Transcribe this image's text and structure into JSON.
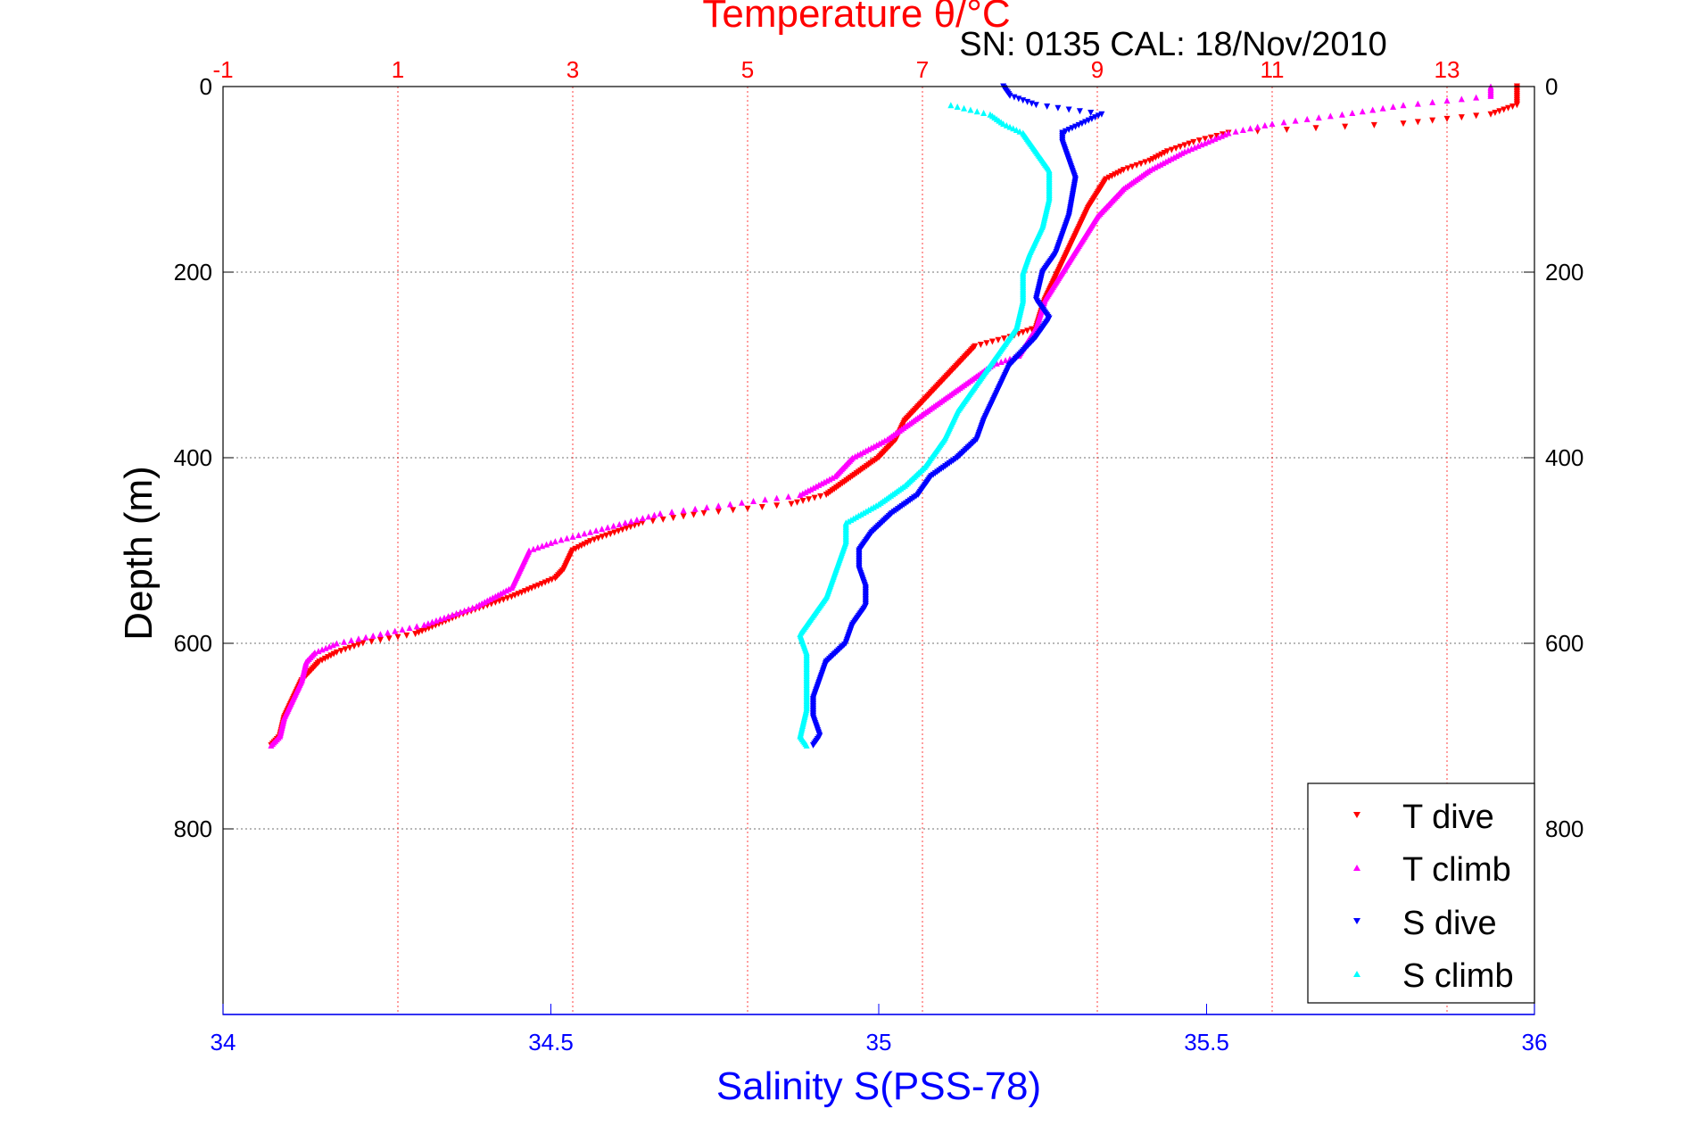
{
  "chart_data": {
    "type": "scatter",
    "title": "Temperature θ/°C",
    "subtitle": "SN: 0135  CAL: 18/Nov/2010",
    "ylabel": "Depth (m)",
    "xlabel_bottom": "Salinity S(PSS-78)",
    "ylim": [
      0,
      1000
    ],
    "y_reversed": true,
    "y_ticks": [
      0,
      200,
      400,
      600,
      800
    ],
    "x_top": {
      "label": "Temperature θ/°C",
      "lim": [
        -1,
        14
      ],
      "ticks": [
        -1,
        1,
        3,
        5,
        7,
        9,
        11,
        13
      ]
    },
    "x_bottom": {
      "label": "Salinity S(PSS-78)",
      "lim": [
        34,
        36
      ],
      "ticks": [
        34,
        34.5,
        35,
        35.5,
        36
      ]
    },
    "grid": true,
    "legend": {
      "placement": "bottom-right",
      "entries": [
        "T dive",
        "T climb",
        "S dive",
        "S climb"
      ]
    },
    "colors": {
      "T dive": "#ff0000",
      "T climb": "#ff00ff",
      "S dive": "#0000ff",
      "S climb": "#00ffff",
      "top_axis": "#ff0000",
      "bottom_axis": "#0000ff"
    },
    "series": [
      {
        "name": "T dive",
        "axis": "top",
        "marker": "triangle-down",
        "points": [
          [
            13.8,
            0
          ],
          [
            13.8,
            10
          ],
          [
            13.8,
            20
          ],
          [
            13.5,
            30
          ],
          [
            12.5,
            40
          ],
          [
            10.5,
            50
          ],
          [
            10.1,
            60
          ],
          [
            9.8,
            70
          ],
          [
            9.6,
            80
          ],
          [
            9.3,
            90
          ],
          [
            9.1,
            100
          ],
          [
            8.9,
            130
          ],
          [
            8.8,
            150
          ],
          [
            8.7,
            170
          ],
          [
            8.6,
            190
          ],
          [
            8.5,
            210
          ],
          [
            8.4,
            230
          ],
          [
            8.35,
            245
          ],
          [
            8.3,
            260
          ],
          [
            8.0,
            270
          ],
          [
            7.6,
            280
          ],
          [
            7.4,
            300
          ],
          [
            7.2,
            320
          ],
          [
            7.0,
            340
          ],
          [
            6.8,
            360
          ],
          [
            6.7,
            380
          ],
          [
            6.5,
            400
          ],
          [
            6.2,
            420
          ],
          [
            5.9,
            440
          ],
          [
            5.5,
            450
          ],
          [
            4.5,
            460
          ],
          [
            3.8,
            470
          ],
          [
            3.2,
            490
          ],
          [
            3.0,
            500
          ],
          [
            2.9,
            520
          ],
          [
            2.8,
            530
          ],
          [
            2.3,
            550
          ],
          [
            1.7,
            570
          ],
          [
            1.2,
            590
          ],
          [
            0.6,
            600
          ],
          [
            0.3,
            610
          ],
          [
            0.1,
            620
          ],
          [
            0.0,
            630
          ],
          [
            -0.1,
            640
          ],
          [
            -0.2,
            660
          ],
          [
            -0.3,
            680
          ],
          [
            -0.35,
            700
          ],
          [
            -0.45,
            710
          ]
        ]
      },
      {
        "name": "T climb",
        "axis": "top",
        "marker": "triangle-up",
        "points": [
          [
            13.5,
            0
          ],
          [
            13.5,
            10
          ],
          [
            12.5,
            20
          ],
          [
            11.8,
            30
          ],
          [
            11.0,
            40
          ],
          [
            10.5,
            50
          ],
          [
            10.0,
            70
          ],
          [
            9.6,
            90
          ],
          [
            9.3,
            110
          ],
          [
            9.0,
            140
          ],
          [
            8.8,
            170
          ],
          [
            8.6,
            200
          ],
          [
            8.4,
            230
          ],
          [
            8.3,
            260
          ],
          [
            8.1,
            290
          ],
          [
            7.8,
            300
          ],
          [
            7.5,
            320
          ],
          [
            7.2,
            340
          ],
          [
            6.9,
            360
          ],
          [
            6.6,
            380
          ],
          [
            6.2,
            400
          ],
          [
            6.0,
            420
          ],
          [
            5.6,
            440
          ],
          [
            4.8,
            450
          ],
          [
            4.0,
            460
          ],
          [
            3.6,
            470
          ],
          [
            3.2,
            480
          ],
          [
            2.8,
            490
          ],
          [
            2.5,
            500
          ],
          [
            2.4,
            520
          ],
          [
            2.3,
            540
          ],
          [
            1.9,
            560
          ],
          [
            1.3,
            580
          ],
          [
            0.8,
            590
          ],
          [
            0.3,
            600
          ],
          [
            0.05,
            610
          ],
          [
            -0.05,
            620
          ],
          [
            -0.1,
            640
          ],
          [
            -0.2,
            660
          ],
          [
            -0.3,
            680
          ],
          [
            -0.35,
            700
          ],
          [
            -0.45,
            710
          ]
        ]
      },
      {
        "name": "S dive",
        "axis": "bottom",
        "marker": "triangle-down",
        "points": [
          [
            35.19,
            0
          ],
          [
            35.2,
            10
          ],
          [
            35.24,
            20
          ],
          [
            35.34,
            30
          ],
          [
            35.31,
            40
          ],
          [
            35.28,
            50
          ],
          [
            35.28,
            60
          ],
          [
            35.29,
            80
          ],
          [
            35.3,
            100
          ],
          [
            35.29,
            140
          ],
          [
            35.27,
            180
          ],
          [
            35.25,
            200
          ],
          [
            35.24,
            230
          ],
          [
            35.26,
            250
          ],
          [
            35.24,
            270
          ],
          [
            35.2,
            300
          ],
          [
            35.18,
            330
          ],
          [
            35.16,
            360
          ],
          [
            35.15,
            380
          ],
          [
            35.12,
            400
          ],
          [
            35.08,
            420
          ],
          [
            35.06,
            440
          ],
          [
            35.02,
            460
          ],
          [
            34.99,
            480
          ],
          [
            34.97,
            500
          ],
          [
            34.97,
            520
          ],
          [
            34.98,
            540
          ],
          [
            34.98,
            560
          ],
          [
            34.96,
            580
          ],
          [
            34.95,
            600
          ],
          [
            34.92,
            620
          ],
          [
            34.91,
            640
          ],
          [
            34.9,
            660
          ],
          [
            34.9,
            680
          ],
          [
            34.91,
            700
          ],
          [
            34.9,
            710
          ]
        ]
      },
      {
        "name": "S climb",
        "axis": "bottom",
        "marker": "triangle-up",
        "points": [
          [
            35.11,
            20
          ],
          [
            35.17,
            30
          ],
          [
            35.19,
            40
          ],
          [
            35.22,
            50
          ],
          [
            35.24,
            70
          ],
          [
            35.26,
            90
          ],
          [
            35.26,
            120
          ],
          [
            35.25,
            150
          ],
          [
            35.23,
            180
          ],
          [
            35.22,
            200
          ],
          [
            35.22,
            230
          ],
          [
            35.21,
            260
          ],
          [
            35.18,
            290
          ],
          [
            35.15,
            320
          ],
          [
            35.12,
            350
          ],
          [
            35.1,
            380
          ],
          [
            35.07,
            410
          ],
          [
            35.04,
            430
          ],
          [
            35.0,
            450
          ],
          [
            34.95,
            470
          ],
          [
            34.95,
            490
          ],
          [
            34.94,
            510
          ],
          [
            34.93,
            530
          ],
          [
            34.92,
            550
          ],
          [
            34.9,
            570
          ],
          [
            34.88,
            590
          ],
          [
            34.89,
            610
          ],
          [
            34.89,
            640
          ],
          [
            34.89,
            670
          ],
          [
            34.88,
            700
          ],
          [
            34.89,
            710
          ]
        ]
      }
    ]
  }
}
